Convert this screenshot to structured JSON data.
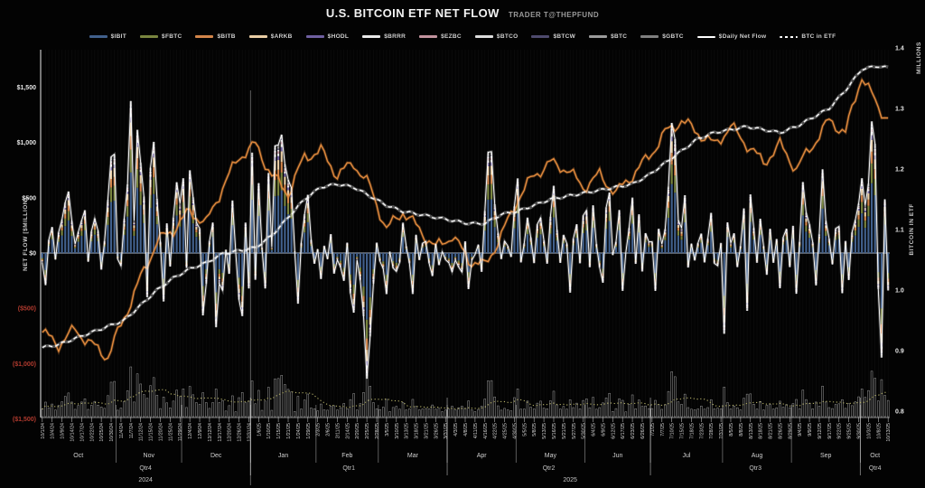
{
  "header": {
    "title": "U.S. BITCOIN ETF NET FLOW",
    "byline": "TRADER T@THEPFUND"
  },
  "legend": {
    "items": [
      {
        "label": "$IBIT",
        "color": "#41608c",
        "style": "swatch"
      },
      {
        "label": "$FBTC",
        "color": "#79853f",
        "style": "swatch"
      },
      {
        "label": "$BITB",
        "color": "#d3854a",
        "style": "swatch"
      },
      {
        "label": "$ARKB",
        "color": "#e9cda4",
        "style": "swatch"
      },
      {
        "label": "$HODL",
        "color": "#6f5fa0",
        "style": "swatch"
      },
      {
        "label": "$BRRR",
        "color": "#e9e9e9",
        "style": "swatch"
      },
      {
        "label": "$EZBC",
        "color": "#c2939e",
        "style": "swatch"
      },
      {
        "label": "$BTCO",
        "color": "#dcdcdc",
        "style": "swatch"
      },
      {
        "label": "$BTCW",
        "color": "#4e4a6e",
        "style": "swatch"
      },
      {
        "label": "$BTC",
        "color": "#9b9b9b",
        "style": "swatch"
      },
      {
        "label": "$GBTC",
        "color": "#7f7f7f",
        "style": "swatch"
      },
      {
        "label": "$Daily Net Flow",
        "color": "#ffffff",
        "style": "line"
      },
      {
        "label": "BTC in ETF",
        "color": "#ffffff",
        "style": "dash"
      }
    ]
  },
  "axes": {
    "left": {
      "title": "NET FLOW [$MILLION]",
      "ticks": [
        {
          "label": "$1,500",
          "value": 1500
        },
        {
          "label": "$1,000",
          "value": 1000
        },
        {
          "label": "$500",
          "value": 500
        },
        {
          "label": "$0",
          "value": 0
        },
        {
          "label": "($500)",
          "value": -500
        },
        {
          "label": "($1,000)",
          "value": -1000
        },
        {
          "label": "($1,500)",
          "value": -1500
        }
      ],
      "negative_tick_color": "#b03a2e"
    },
    "right": {
      "title": "BITCOIN IN ETF",
      "top_label": "MILLIONS",
      "ticks": [
        {
          "label": "1.4",
          "value": 1.4
        },
        {
          "label": "1.3",
          "value": 1.3
        },
        {
          "label": "1.2",
          "value": 1.2
        },
        {
          "label": "1.1",
          "value": 1.1
        },
        {
          "label": "1.0",
          "value": 1.0
        },
        {
          "label": "0.9",
          "value": 0.9
        },
        {
          "label": "0.8",
          "value": 0.8
        }
      ]
    }
  },
  "chart_data": {
    "type": "bar",
    "title": "U.S. BITCOIN ETF NET FLOW",
    "xlabel": "",
    "ylabel_left": "NET FLOW [$MILLION]",
    "ylabel_right": "BITCOIN IN ETF (MILLIONS)",
    "ylim_left": [
      -1500,
      1500
    ],
    "ylim_right": [
      0.8,
      1.4
    ],
    "grid": "faint vertical day lines, black background",
    "legend_position": "top center",
    "x_tick_every": 3,
    "x_tick_labels": [
      "10/1/24",
      "10/4/24",
      "10/9/24",
      "10/14/24",
      "10/17/24",
      "10/22/24",
      "10/25/24",
      "10/30/24",
      "11/4/24",
      "11/7/24",
      "11/12/24",
      "11/15/24",
      "11/20/24",
      "11/25/24",
      "11/29/24",
      "12/4/24",
      "12/9/24",
      "12/12/24",
      "12/17/24",
      "12/20/24",
      "12/26/24",
      "12/31/24",
      "1/6/25",
      "1/10/25",
      "1/15/25",
      "1/21/25",
      "1/24/25",
      "1/29/25",
      "2/3/25",
      "2/6/25",
      "2/11/25",
      "2/14/25",
      "2/20/25",
      "2/25/25",
      "2/28/25",
      "3/5/25",
      "3/10/25",
      "3/13/25",
      "3/18/25",
      "3/21/25",
      "3/26/25",
      "3/31/25",
      "4/3/25",
      "4/8/25",
      "4/11/25",
      "4/16/25",
      "4/22/25",
      "4/25/25",
      "4/30/25",
      "5/5/25",
      "5/8/25",
      "5/13/25",
      "5/16/25",
      "5/21/25",
      "5/27/25",
      "5/30/25",
      "6/4/25",
      "6/9/25",
      "6/12/25",
      "6/17/25",
      "6/23/25",
      "6/26/25",
      "7/1/25",
      "7/7/25",
      "7/10/25",
      "7/15/25",
      "7/18/25",
      "7/23/25",
      "7/28/25",
      "7/31/25",
      "8/5/25",
      "8/8/25",
      "8/13/25",
      "8/18/25",
      "8/21/25",
      "8/26/25",
      "8/29/25",
      "9/4/25",
      "9/9/25",
      "9/12/25",
      "9/17/25",
      "9/22/25",
      "9/25/25",
      "9/30/25",
      "10/3/25",
      "10/8/25",
      "10/13/25"
    ],
    "months": [
      {
        "label": "Oct",
        "start": 0,
        "end": 22
      },
      {
        "label": "Nov",
        "start": 23,
        "end": 42
      },
      {
        "label": "Dec",
        "start": 43,
        "end": 63
      },
      {
        "label": "Jan",
        "start": 64,
        "end": 83
      },
      {
        "label": "Feb",
        "start": 84,
        "end": 102
      },
      {
        "label": "Mar",
        "start": 103,
        "end": 123
      },
      {
        "label": "Apr",
        "start": 124,
        "end": 144
      },
      {
        "label": "May",
        "start": 145,
        "end": 165
      },
      {
        "label": "Jun",
        "start": 166,
        "end": 185
      },
      {
        "label": "Jul",
        "start": 186,
        "end": 207
      },
      {
        "label": "Aug",
        "start": 208,
        "end": 228
      },
      {
        "label": "Sep",
        "start": 229,
        "end": 249
      },
      {
        "label": "Oct",
        "start": 250,
        "end": 258
      }
    ],
    "quarters": [
      {
        "label": "Qtr4",
        "start": 0,
        "end": 63
      },
      {
        "label": "Qtr1",
        "start": 64,
        "end": 123
      },
      {
        "label": "Qtr2",
        "start": 124,
        "end": 185
      },
      {
        "label": "Qtr3",
        "start": 186,
        "end": 249
      },
      {
        "label": "Qtr4",
        "start": 250,
        "end": 258
      }
    ],
    "years": [
      {
        "label": "2024",
        "start": 0,
        "end": 63
      },
      {
        "label": "2025",
        "start": 64,
        "end": 258
      }
    ],
    "etf_stack": {
      "order": [
        "IBIT",
        "FBTC",
        "BITB",
        "ARKB",
        "HODL",
        "BRRR",
        "EZBC",
        "BTCO",
        "BTCW",
        "BTC",
        "GBTC"
      ],
      "fractions": [
        0.53,
        0.15,
        0.09,
        0.09,
        0.035,
        0.025,
        0.02,
        0.015,
        0.01,
        0.015,
        0.02
      ],
      "colors": [
        "#41608c",
        "#79853f",
        "#d3854a",
        "#e9cda4",
        "#6f5fa0",
        "#e9e9e9",
        "#c2939e",
        "#dcdcdc",
        "#4e4a6e",
        "#9b9b9b",
        "#7f7f7f"
      ]
    },
    "series": [
      {
        "name": "$Daily Net Flow",
        "axis": "left",
        "unit": "USD million (estimated from chart)",
        "values": [
          -85,
          -290,
          120,
          235,
          -60,
          190,
          300,
          458,
          556,
          292,
          81,
          192,
          294,
          387,
          -79,
          198,
          312,
          202,
          -150,
          109,
          479,
          870,
          893,
          -55,
          -116,
          310,
          621,
          1374,
          293,
          1114,
          818,
          510,
          -400,
          771,
          1005,
          490,
          103,
          -438,
          268,
          -122,
          320,
          640,
          450,
          676,
          -134,
          748,
          504,
          276,
          223,
          -564,
          -277,
          108,
          275,
          -671,
          -277,
          -338,
          31,
          -188,
          475,
          8,
          -420,
          -570,
          275,
          -320,
          908,
          -242,
          632,
          52,
          -320,
          724,
          52,
          969,
          978,
          1070,
          802,
          662,
          588,
          18,
          -458,
          92,
          350,
          526,
          120,
          -97,
          36,
          -235,
          66,
          -56,
          171,
          -186,
          -62,
          -130,
          -251,
          94,
          -364,
          -539,
          -61,
          -247,
          -571,
          -1136,
          -754,
          -276,
          94,
          -74,
          -143,
          -371,
          13,
          -135,
          -166,
          -84,
          274,
          63,
          -93,
          -370,
          165,
          -64,
          89,
          105,
          -93,
          -208,
          84,
          -109,
          13,
          -60,
          -88,
          -170,
          -64,
          -127,
          -172,
          106,
          -326,
          -65,
          -13,
          76,
          -170,
          381,
          912,
          917,
          442,
          183,
          -56,
          108,
          64,
          -36,
          422,
          675,
          -85,
          88,
          320,
          142,
          -91,
          260,
          319,
          114,
          -96,
          329,
          608,
          211,
          -89,
          164,
          86,
          -358,
          131,
          260,
          -93,
          339,
          386,
          -128,
          431,
          83,
          -131,
          -268,
          412,
          547,
          -19,
          102,
          389,
          -342,
          6,
          228,
          501,
          -98,
          350,
          -167,
          179,
          102,
          102,
          -342,
          219,
          80,
          218,
          601,
          1176,
          1030,
          297,
          226,
          523,
          -131,
          85,
          -67,
          90,
          175,
          -85,
          131,
          363,
          -93,
          -115,
          91,
          -730,
          277,
          91,
          178,
          -127,
          65,
          403,
          -523,
          530,
          230,
          -88,
          310,
          65,
          -197,
          219,
          -88,
          127,
          -318,
          143,
          219,
          -127,
          246,
          -368,
          102,
          642,
          364,
          260,
          96,
          -292,
          172,
          757,
          292,
          131,
          -103,
          222,
          241,
          -363,
          109,
          -244,
          188,
          299,
          446,
          676,
          430,
          627,
          1190,
          986,
          -326,
          -945,
          486,
          -339
        ]
      },
      {
        "name": "BTC in ETF",
        "axis": "right",
        "unit": "million BTC (estimated anchor points, one per 5 trading days)",
        "anchors_every": 5,
        "values": [
          0.905,
          0.91,
          0.92,
          0.93,
          0.94,
          0.95,
          0.975,
          1.0,
          1.02,
          1.035,
          1.045,
          1.06,
          1.065,
          1.07,
          1.09,
          1.12,
          1.15,
          1.17,
          1.175,
          1.17,
          1.155,
          1.14,
          1.13,
          1.125,
          1.12,
          1.115,
          1.11,
          1.11,
          1.125,
          1.13,
          1.14,
          1.15,
          1.155,
          1.16,
          1.165,
          1.17,
          1.175,
          1.19,
          1.21,
          1.23,
          1.25,
          1.26,
          1.265,
          1.27,
          1.265,
          1.26,
          1.27,
          1.285,
          1.3,
          1.33,
          1.365,
          1.37,
          1.365
        ]
      },
      {
        "name": "BTC price overlay (orange line, no labeled axis)",
        "axis": "right",
        "unit": "plotted on right-axis scale (estimated anchor points)",
        "anchors_every": 5,
        "values": [
          0.93,
          0.91,
          0.935,
          0.91,
          0.89,
          0.955,
          1.02,
          1.08,
          1.1,
          1.13,
          1.11,
          1.17,
          1.22,
          1.24,
          1.19,
          1.16,
          1.22,
          1.23,
          1.19,
          1.21,
          1.17,
          1.1,
          1.13,
          1.1,
          1.07,
          1.09,
          1.05,
          1.04,
          1.09,
          1.15,
          1.19,
          1.21,
          1.2,
          1.17,
          1.19,
          1.16,
          1.19,
          1.22,
          1.26,
          1.28,
          1.26,
          1.24,
          1.27,
          1.24,
          1.21,
          1.24,
          1.2,
          1.24,
          1.28,
          1.26,
          1.355,
          1.3,
          1.275
        ]
      }
    ],
    "volume_histogram": {
      "description": "unlabeled hollow volume-style bars along bottom with dotted olive moving-average line; height proportional to absolute daily net flow"
    }
  }
}
